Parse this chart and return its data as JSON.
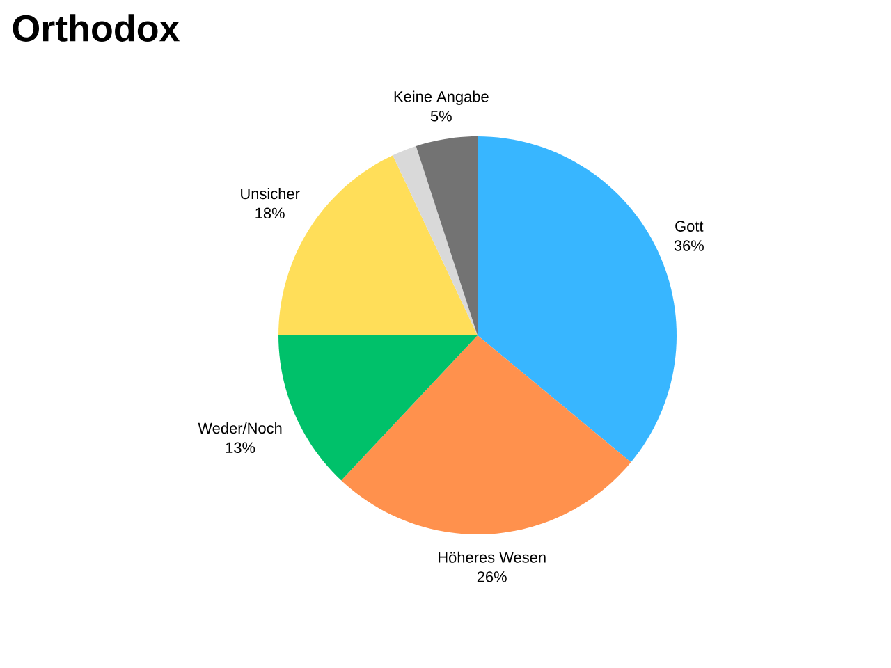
{
  "chart_data": {
    "type": "pie",
    "title": "Orthodox",
    "categories": [
      "Gott",
      "Höheres Wesen",
      "Weder/Noch",
      "Unsicher",
      null,
      "Keine Angabe"
    ],
    "values": [
      36,
      26,
      13,
      18,
      2,
      5
    ],
    "value_labels": [
      "36%",
      "26%",
      "13%",
      "18%",
      null,
      "5%"
    ],
    "colors": [
      "#38b6ff",
      "#ff914d",
      "#00c16a",
      "#ffde59",
      "#d9d9d9",
      "#737373"
    ]
  }
}
